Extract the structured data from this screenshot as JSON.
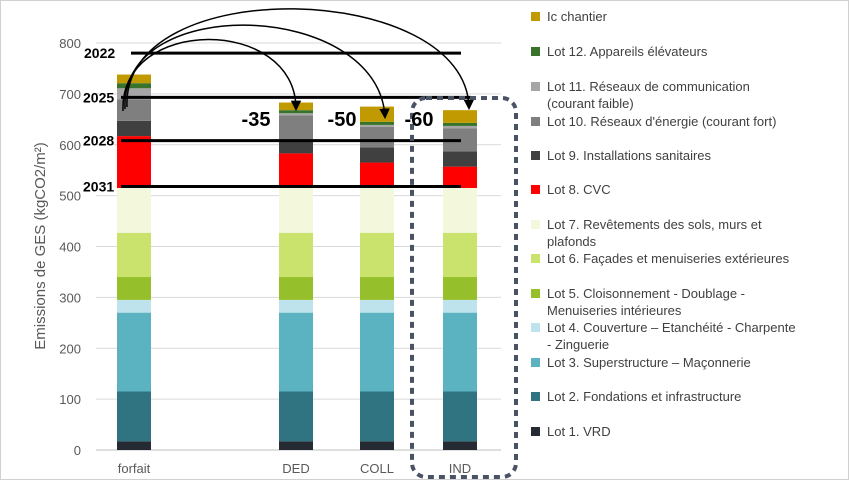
{
  "chart_data": {
    "type": "bar",
    "stacked": true,
    "categories": [
      "forfait",
      "",
      "DED",
      "COLL",
      "IND"
    ],
    "ylabel": "Emissions de GES (kgCO2/m²)",
    "ylim": [
      0,
      800
    ],
    "yticks": [
      0,
      100,
      200,
      300,
      400,
      500,
      600,
      700,
      800
    ],
    "grid": true,
    "legend_position": "right",
    "series": [
      {
        "name": "Lot 1. VRD",
        "color": "#262b33",
        "values": [
          17,
          null,
          17,
          17,
          17
        ]
      },
      {
        "name": "Lot 2. Fondations et infrastructure",
        "color": "#2f7480",
        "values": [
          98,
          null,
          98,
          98,
          98
        ]
      },
      {
        "name": "Lot 3. Superstructure – Maçonnerie",
        "color": "#5bb3c2",
        "values": [
          155,
          null,
          155,
          155,
          155
        ]
      },
      {
        "name": "Lot 4. Couverture – Etanchéité - Charpente - Zinguerie",
        "color": "#bfe3ec",
        "values": [
          25,
          null,
          25,
          25,
          25
        ]
      },
      {
        "name": "Lot 5. Cloisonnement - Doublage - Menuiseries intérieures",
        "color": "#95bf2b",
        "values": [
          45,
          null,
          45,
          45,
          45
        ]
      },
      {
        "name": "Lot 6. Façades et menuiseries extérieures",
        "color": "#c9e36d",
        "values": [
          87,
          null,
          87,
          87,
          87
        ]
      },
      {
        "name": "Lot 7. Revêtements des sols, murs et plafonds",
        "color": "#f3f8dd",
        "values": [
          88,
          null,
          88,
          88,
          88
        ]
      },
      {
        "name": "Lot 8. CVC",
        "color": "#ff0000",
        "values": [
          102,
          null,
          68,
          50,
          42
        ]
      },
      {
        "name": "Lot 9. Installations sanitaires",
        "color": "#404040",
        "values": [
          30,
          null,
          25,
          30,
          30
        ]
      },
      {
        "name": "Lot 10. Réseaux d'énergie (courant fort)",
        "color": "#7f7f7f",
        "values": [
          42,
          null,
          50,
          40,
          45
        ]
      },
      {
        "name": "Lot 11. Réseaux de communication (courant faible)",
        "color": "#a6a6a6",
        "values": [
          22,
          null,
          4,
          4,
          5
        ]
      },
      {
        "name": "Lot 12. Appareils élévateurs",
        "color": "#38732b",
        "values": [
          10,
          null,
          6,
          6,
          6
        ]
      },
      {
        "name": "Ic chantier",
        "color": "#c09a00",
        "values": [
          17,
          null,
          15,
          30,
          25
        ]
      }
    ],
    "thresholds": [
      {
        "label": "2022",
        "value": 780
      },
      {
        "label": "2025",
        "value": 693
      },
      {
        "label": "2028",
        "value": 608
      },
      {
        "label": "2031",
        "value": 518
      }
    ],
    "annotations": [
      "-35",
      "-50",
      "-60"
    ]
  }
}
